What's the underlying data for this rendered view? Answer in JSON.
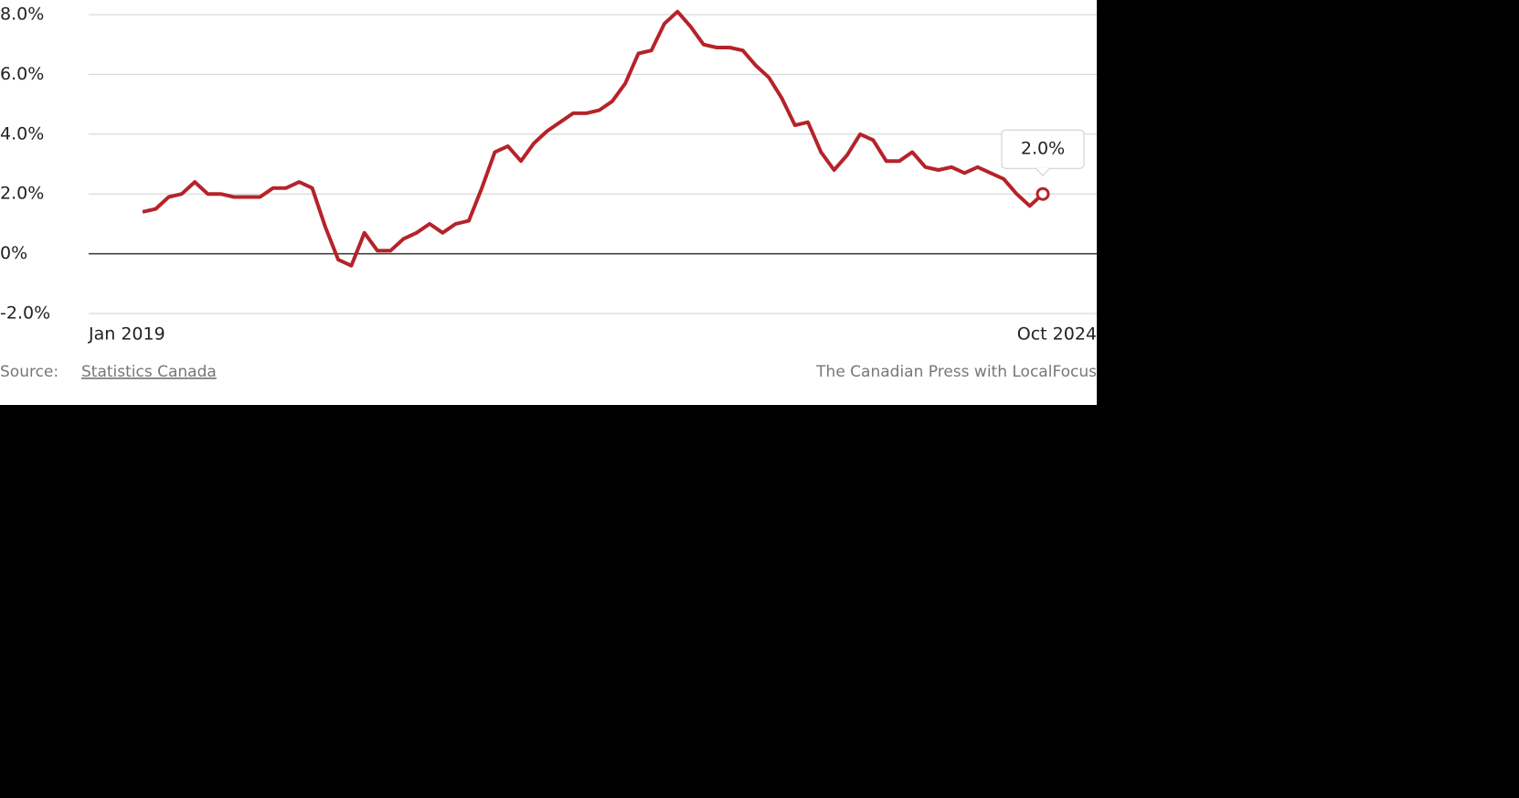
{
  "chart_data": {
    "type": "line",
    "categories": [
      "Jan 2019",
      null,
      null,
      null,
      null,
      null,
      null,
      null,
      null,
      null,
      null,
      null,
      null,
      null,
      null,
      null,
      null,
      null,
      null,
      null,
      null,
      null,
      null,
      null,
      null,
      null,
      null,
      null,
      null,
      null,
      null,
      null,
      null,
      null,
      null,
      null,
      null,
      null,
      null,
      null,
      null,
      null,
      null,
      null,
      null,
      null,
      null,
      null,
      null,
      null,
      null,
      null,
      null,
      null,
      null,
      null,
      null,
      null,
      null,
      null,
      null,
      null,
      null,
      null,
      null,
      null,
      null,
      null,
      null,
      "Oct 2024"
    ],
    "series": [
      {
        "color": "#b5232a",
        "values": [
          1.4,
          1.5,
          1.9,
          2.0,
          2.4,
          2.0,
          2.0,
          1.9,
          1.9,
          1.9,
          2.2,
          2.2,
          2.4,
          2.2,
          0.9,
          -0.2,
          -0.4,
          0.7,
          0.1,
          0.1,
          0.5,
          0.7,
          1.0,
          0.7,
          1.0,
          1.1,
          2.2,
          3.4,
          3.6,
          3.1,
          3.7,
          4.1,
          4.4,
          4.7,
          4.7,
          4.8,
          5.1,
          5.7,
          6.7,
          6.8,
          7.7,
          8.1,
          7.6,
          7.0,
          6.9,
          6.9,
          6.8,
          6.3,
          5.9,
          5.2,
          4.3,
          4.4,
          3.4,
          2.8,
          3.3,
          4.0,
          3.8,
          3.1,
          3.1,
          3.4,
          2.9,
          2.8,
          2.9,
          2.7,
          2.9,
          2.7,
          2.5,
          2.0,
          1.6,
          2.0
        ],
        "value_labels": [
          null,
          null,
          null,
          null,
          null,
          null,
          null,
          null,
          null,
          null,
          null,
          null,
          null,
          null,
          null,
          null,
          null,
          null,
          null,
          null,
          null,
          null,
          null,
          null,
          null,
          null,
          null,
          null,
          null,
          null,
          null,
          null,
          null,
          null,
          null,
          null,
          null,
          null,
          null,
          null,
          null,
          null,
          null,
          null,
          null,
          null,
          null,
          null,
          null,
          null,
          null,
          null,
          null,
          null,
          null,
          null,
          null,
          null,
          null,
          null,
          null,
          null,
          null,
          null,
          null,
          null,
          null,
          null,
          null,
          "2.0%"
        ]
      }
    ],
    "ylim": [
      -2,
      8
    ],
    "yticks": [
      {
        "value": -2,
        "label": "-2.0%"
      },
      {
        "value": 0,
        "label": "0%"
      },
      {
        "value": 2,
        "label": "2.0%"
      },
      {
        "value": 4,
        "label": "4.0%"
      },
      {
        "value": 6,
        "label": "6.0%"
      },
      {
        "value": 8,
        "label": "8.0%"
      }
    ],
    "grid": true,
    "source_label": "Source:",
    "source": "Statistics Canada",
    "credit": "The Canadian Press with LocalFocus"
  }
}
